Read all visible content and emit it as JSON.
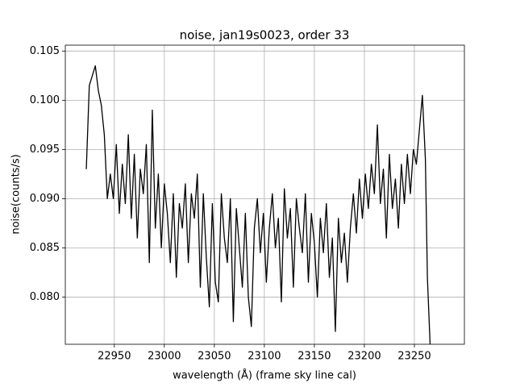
{
  "chart_data": {
    "type": "line",
    "title": "noise, jan19s0023, order 33",
    "xlabel": "wavelength (Å) (frame sky line cal)",
    "ylabel": "noise(counts/s)",
    "x": [
      22922,
      22925,
      22928,
      22931,
      22934,
      22937,
      22940,
      22943,
      22946,
      22949,
      22952,
      22955,
      22958,
      22961,
      22964,
      22967,
      22970,
      22973,
      22976,
      22979,
      22982,
      22985,
      22988,
      22991,
      22994,
      22997,
      23000,
      23003,
      23006,
      23009,
      23012,
      23015,
      23018,
      23021,
      23024,
      23027,
      23030,
      23033,
      23036,
      23039,
      23042,
      23045,
      23048,
      23051,
      23054,
      23057,
      23060,
      23063,
      23066,
      23069,
      23072,
      23075,
      23078,
      23081,
      23084,
      23087,
      23090,
      23093,
      23096,
      23099,
      23102,
      23105,
      23108,
      23111,
      23114,
      23117,
      23120,
      23123,
      23126,
      23129,
      23132,
      23135,
      23138,
      23141,
      23144,
      23147,
      23150,
      23153,
      23156,
      23159,
      23162,
      23165,
      23168,
      23171,
      23174,
      23177,
      23180,
      23183,
      23186,
      23189,
      23192,
      23195,
      23198,
      23201,
      23204,
      23207,
      23210,
      23213,
      23216,
      23219,
      23222,
      23225,
      23228,
      23231,
      23234,
      23237,
      23240,
      23243,
      23246,
      23249,
      23252,
      23255,
      23258,
      23261,
      23263,
      23266
    ],
    "series": [
      {
        "name": "noise",
        "color": "#000000",
        "values": [
          0.093,
          0.1015,
          0.1025,
          0.1035,
          0.101,
          0.0995,
          0.0965,
          0.09,
          0.0925,
          0.09,
          0.0955,
          0.0885,
          0.0935,
          0.0895,
          0.0965,
          0.088,
          0.0945,
          0.086,
          0.093,
          0.0905,
          0.0955,
          0.0835,
          0.099,
          0.087,
          0.0925,
          0.085,
          0.0915,
          0.0885,
          0.0835,
          0.0905,
          0.082,
          0.0895,
          0.087,
          0.0915,
          0.0835,
          0.0905,
          0.088,
          0.0925,
          0.081,
          0.0905,
          0.084,
          0.079,
          0.0895,
          0.0815,
          0.0795,
          0.0905,
          0.086,
          0.0835,
          0.09,
          0.0775,
          0.089,
          0.085,
          0.081,
          0.0885,
          0.08,
          0.077,
          0.087,
          0.09,
          0.0845,
          0.0885,
          0.0815,
          0.087,
          0.0905,
          0.085,
          0.088,
          0.0795,
          0.091,
          0.086,
          0.089,
          0.081,
          0.09,
          0.087,
          0.0845,
          0.0905,
          0.0815,
          0.0885,
          0.0855,
          0.08,
          0.088,
          0.0845,
          0.0895,
          0.082,
          0.086,
          0.0765,
          0.088,
          0.0835,
          0.0865,
          0.0815,
          0.087,
          0.0905,
          0.0865,
          0.092,
          0.088,
          0.0925,
          0.089,
          0.0935,
          0.0905,
          0.0975,
          0.0895,
          0.093,
          0.086,
          0.0945,
          0.089,
          0.092,
          0.087,
          0.0935,
          0.0895,
          0.0945,
          0.0905,
          0.095,
          0.0935,
          0.097,
          0.1005,
          0.094,
          0.082,
          0.0745
        ]
      }
    ],
    "xlim": [
      22901,
      23300
    ],
    "ylim": [
      0.0752,
      0.1056
    ],
    "xticks": [
      22950,
      23000,
      23050,
      23100,
      23150,
      23200,
      23250
    ],
    "yticks": [
      {
        "value": 0.08,
        "label": "0.080"
      },
      0.085,
      {
        "value": 0.09,
        "label": "0.090"
      },
      0.095,
      {
        "value": 0.1,
        "label": "0.100"
      },
      0.105
    ],
    "grid": true
  }
}
